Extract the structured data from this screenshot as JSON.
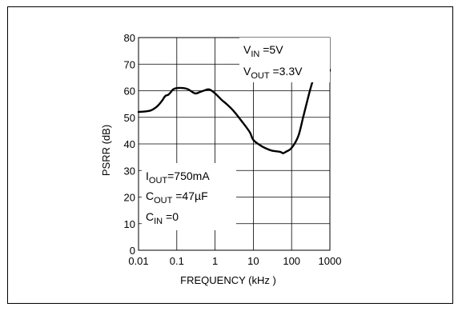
{
  "chart_data": {
    "type": "line",
    "title": "",
    "xlabel": "FREQUENCY (kHz )",
    "ylabel": "PSRR (dB)",
    "x_scale": "log",
    "xlim": [
      0.01,
      1000
    ],
    "ylim": [
      0,
      80
    ],
    "grid": true,
    "x_ticks": [
      0.01,
      0.1,
      1,
      10,
      100,
      1000
    ],
    "x_tick_labels": [
      "0.01",
      "0.1",
      "1",
      "10",
      "100",
      "1000"
    ],
    "y_ticks": [
      0,
      10,
      20,
      30,
      40,
      50,
      60,
      70,
      80
    ],
    "y_tick_labels": [
      "0",
      "10",
      "20",
      "30",
      "40",
      "50",
      "60",
      "70",
      "80"
    ],
    "series": [
      {
        "x": [
          0.01,
          0.02,
          0.03,
          0.04,
          0.05,
          0.06,
          0.07,
          0.08,
          0.1,
          0.15,
          0.2,
          0.3,
          0.4,
          0.5,
          0.7,
          1,
          1.5,
          2,
          3,
          5,
          8,
          10,
          15,
          20,
          30,
          50,
          60,
          70,
          100,
          150,
          200,
          300,
          400,
          500,
          600,
          700,
          800,
          900,
          1000
        ],
        "y": [
          52,
          52.5,
          54,
          56,
          58,
          58.5,
          59.5,
          60.5,
          61,
          61,
          60.5,
          59,
          59.5,
          60,
          60.5,
          59,
          56.5,
          55,
          52.5,
          48.5,
          44.5,
          41.5,
          39.5,
          38.5,
          37.5,
          37,
          36.5,
          37,
          38.5,
          43,
          50,
          60,
          66,
          70,
          72.5,
          73,
          72,
          70.5,
          67.5
        ],
        "color": "#000000"
      }
    ],
    "annotations": {
      "vin": {
        "main": "V",
        "sub": "IN",
        "rest": " =5V"
      },
      "vout": {
        "main": "V",
        "sub": "OUT",
        "rest": " =3.3V"
      },
      "iout": {
        "main": "I",
        "sub": "OUT",
        "rest": "=750mA"
      },
      "cout": {
        "main": "C",
        "sub": "OUT",
        "rest": " =47µF"
      },
      "cin": {
        "main": "C",
        "sub": "IN",
        "rest": " =0"
      }
    }
  }
}
